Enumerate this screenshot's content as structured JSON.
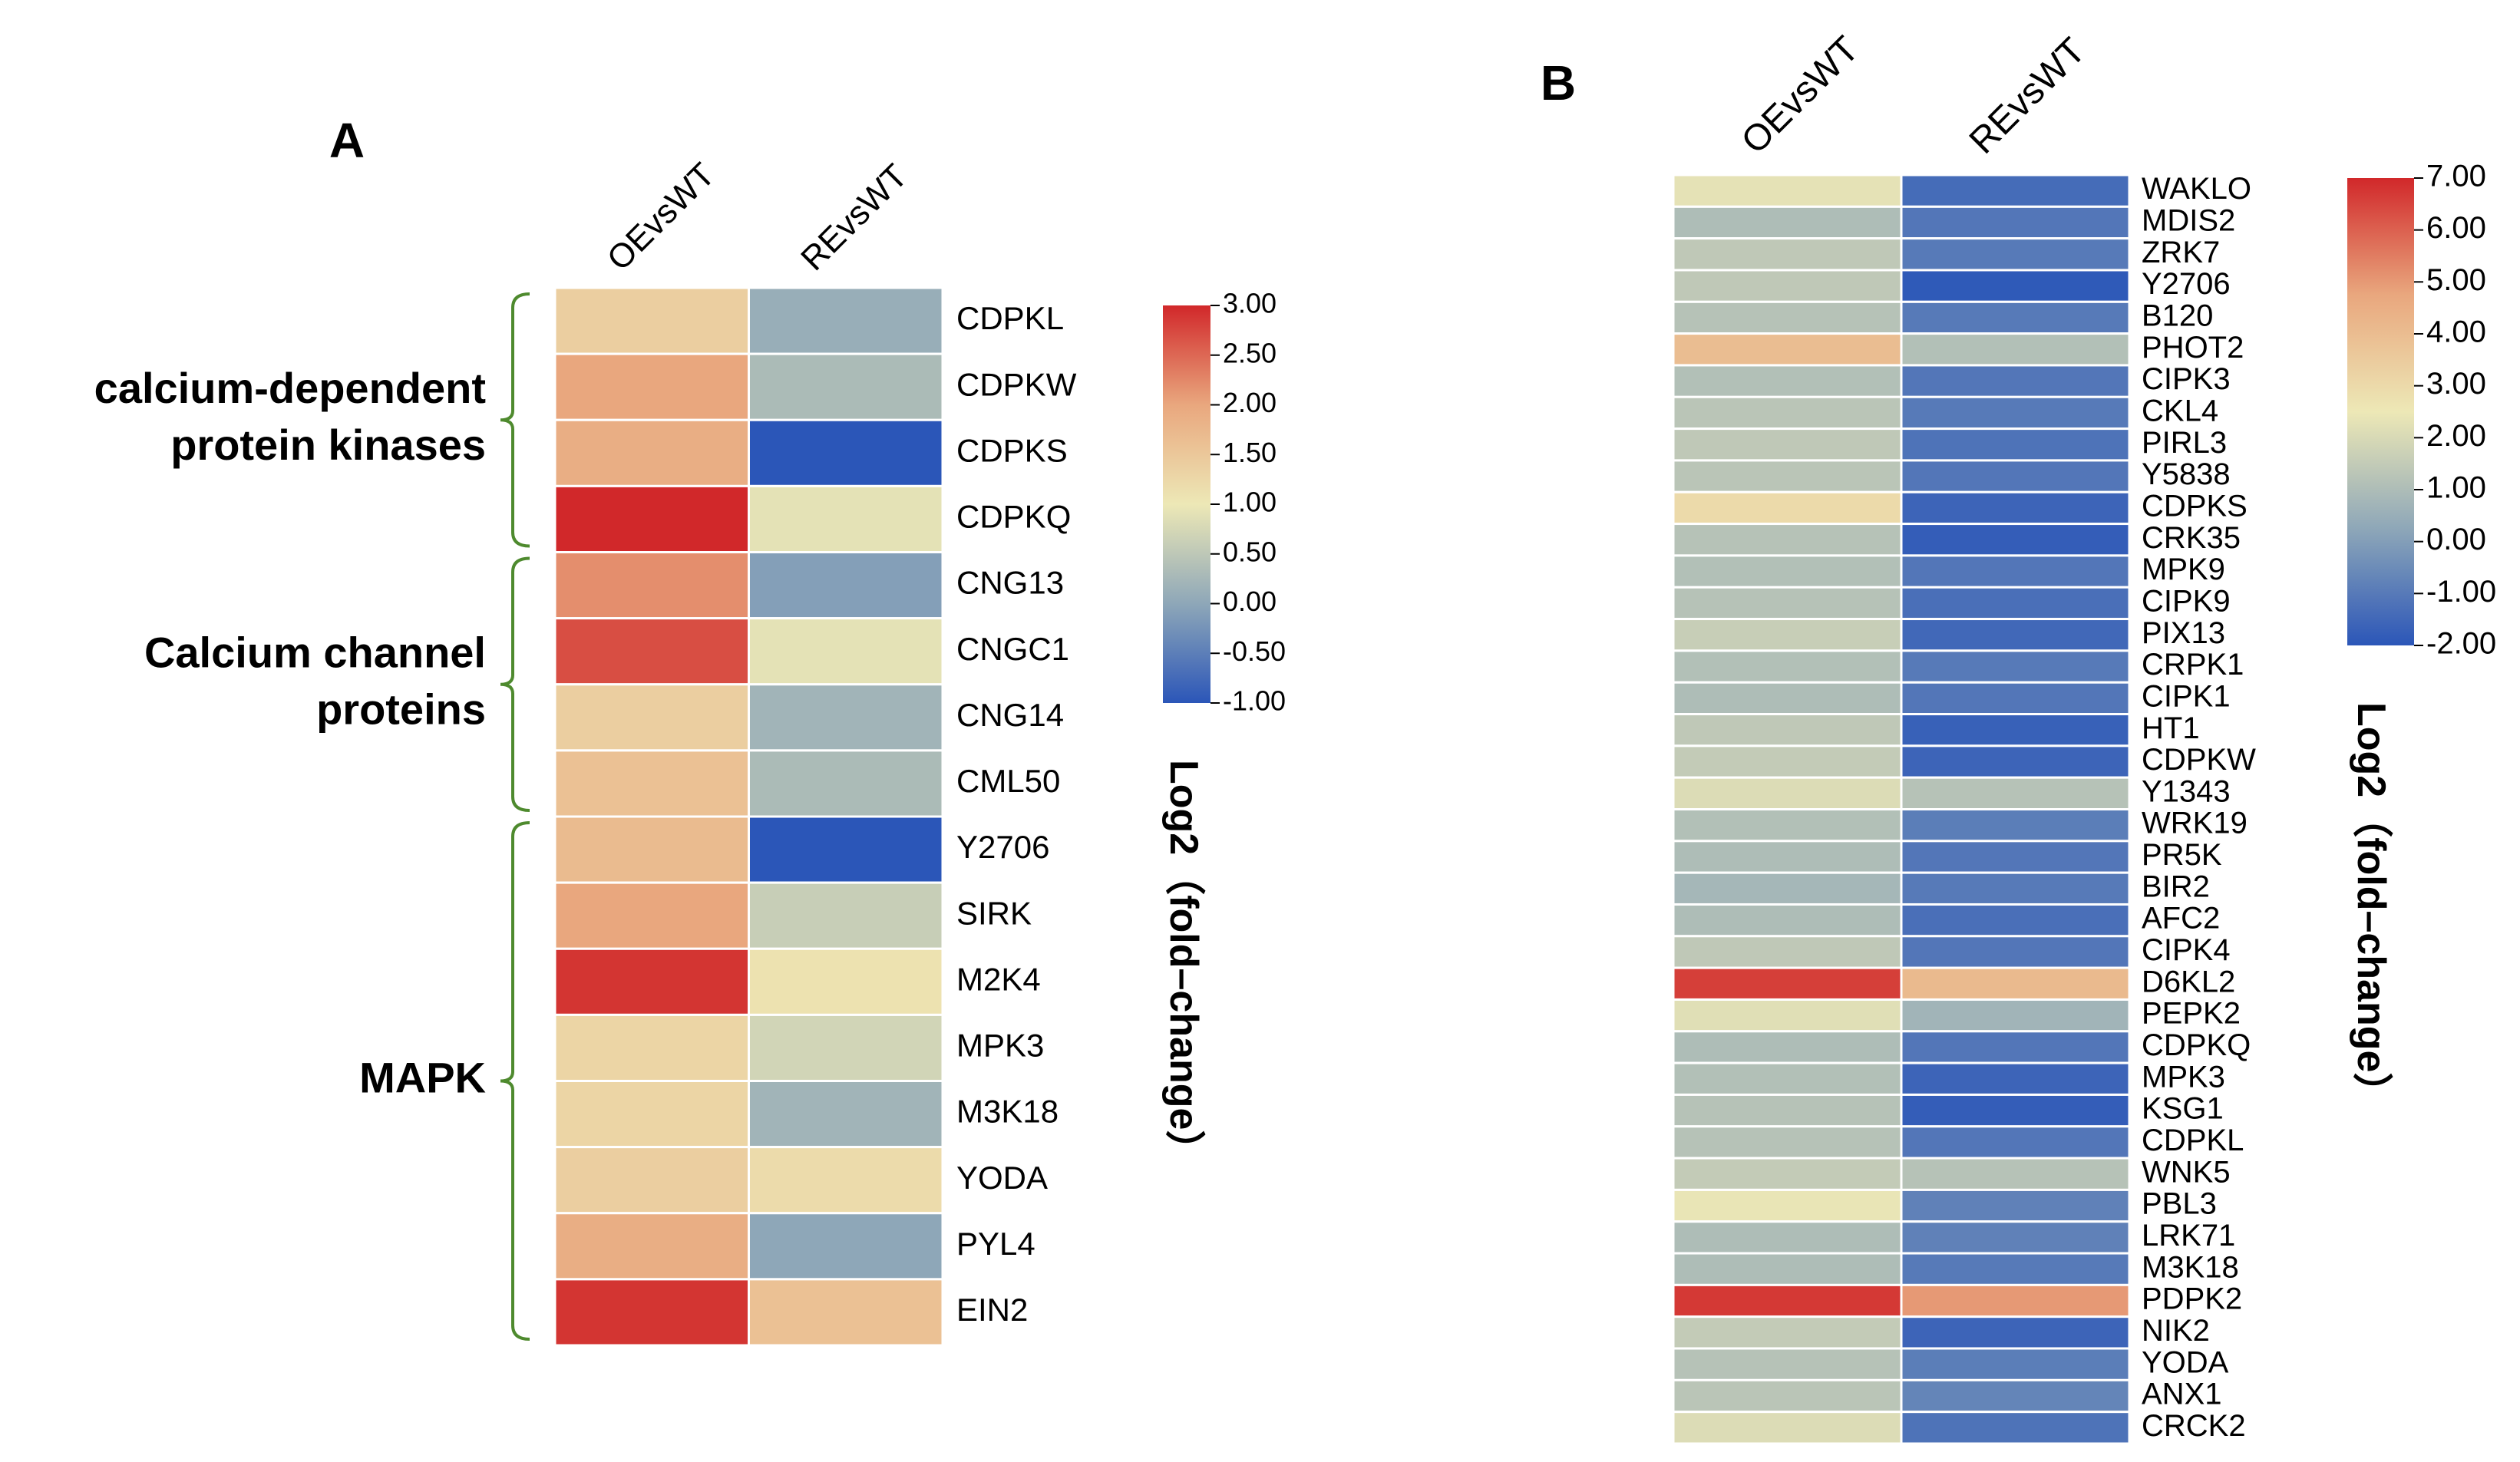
{
  "chart_data": [
    {
      "panel": "A",
      "type": "heatmap",
      "columns": [
        "OEvsWT",
        "REvsWT"
      ],
      "rows": [
        "CDPKL",
        "CDPKW",
        "CDPKS",
        "CDPKQ",
        "CNG13",
        "CNGC1",
        "CNG14",
        "CML50",
        "Y2706",
        "SIRK",
        "M2K4",
        "MPK3",
        "M3K18",
        "YODA",
        "PYL4",
        "EIN2"
      ],
      "values": [
        [
          1.4,
          0.1
        ],
        [
          2.0,
          0.3
        ],
        [
          1.9,
          -1.0
        ],
        [
          3.0,
          0.9
        ],
        [
          2.2,
          -0.1
        ],
        [
          2.7,
          0.9
        ],
        [
          1.4,
          0.2
        ],
        [
          1.6,
          0.3
        ],
        [
          1.7,
          -1.0
        ],
        [
          2.0,
          0.6
        ],
        [
          2.9,
          1.1
        ],
        [
          1.3,
          0.7
        ],
        [
          1.3,
          0.2
        ],
        [
          1.4,
          1.2
        ],
        [
          1.9,
          0.0
        ],
        [
          2.9,
          1.6
        ]
      ],
      "groups": [
        {
          "label": "calcium-dependent\nprotein kinases",
          "rows": [
            "CDPKL",
            "CDPKQ"
          ]
        },
        {
          "label": "Calcium channel\nproteins",
          "rows": [
            "CNG13",
            "CML50"
          ]
        },
        {
          "label": "MAPK",
          "rows": [
            "Y2706",
            "EIN2"
          ]
        }
      ],
      "legend": {
        "title": "Log2（fold–change）",
        "min": -1.0,
        "max": 3.0,
        "ticks": [
          "3.00",
          "2.50",
          "2.00",
          "1.50",
          "1.00",
          "0.50",
          "0.00",
          "-0.50",
          "-1.00"
        ]
      }
    },
    {
      "panel": "B",
      "type": "heatmap",
      "columns": [
        "OEvsWT",
        "REvsWT"
      ],
      "rows": [
        "WAKLO",
        "MDIS2",
        "ZRK7",
        "Y2706",
        "B120",
        "PHOT2",
        "CIPK3",
        "CKL4",
        "PIRL3",
        "Y5838",
        "CDPKS",
        "CRK35",
        "MPK9",
        "CIPK9",
        "PIX13",
        "CRPK1",
        "CIPK1",
        "HT1",
        "CDPKW",
        "Y1343",
        "WRK19",
        "PR5K",
        "BIR2",
        "AFC2",
        "CIPK4",
        "D6KL2",
        "PEPK2",
        "CDPKQ",
        "MPK3",
        "KSG1",
        "CDPKL",
        "WNK5",
        "PBL3",
        "LRK71",
        "M3K18",
        "PDPK2",
        "NIK2",
        "YODA",
        "ANX1",
        "CRCK2"
      ],
      "values": [
        [
          2.3,
          -1.4
        ],
        [
          1.0,
          -1.1
        ],
        [
          1.4,
          -1.0
        ],
        [
          1.4,
          -1.9
        ],
        [
          1.2,
          -1.0
        ],
        [
          4.0,
          1.1
        ],
        [
          1.1,
          -1.1
        ],
        [
          1.3,
          -1.0
        ],
        [
          1.4,
          -1.2
        ],
        [
          1.3,
          -1.1
        ],
        [
          3.0,
          -1.6
        ],
        [
          1.2,
          -1.8
        ],
        [
          1.1,
          -1.1
        ],
        [
          1.2,
          -1.3
        ],
        [
          1.6,
          -1.5
        ],
        [
          1.1,
          -1.0
        ],
        [
          1.0,
          -1.1
        ],
        [
          1.4,
          -1.7
        ],
        [
          1.5,
          -1.6
        ],
        [
          2.1,
          1.2
        ],
        [
          1.1,
          -0.9
        ],
        [
          1.0,
          -1.1
        ],
        [
          0.8,
          -1.0
        ],
        [
          1.0,
          -1.3
        ],
        [
          1.4,
          -1.1
        ],
        [
          6.6,
          4.1
        ],
        [
          2.2,
          0.7
        ],
        [
          1.0,
          -1.1
        ],
        [
          1.1,
          -1.6
        ],
        [
          1.2,
          -1.8
        ],
        [
          1.2,
          -1.1
        ],
        [
          1.5,
          1.2
        ],
        [
          2.4,
          -0.8
        ],
        [
          1.0,
          -0.8
        ],
        [
          1.0,
          -1.0
        ],
        [
          6.7,
          5.0
        ],
        [
          1.5,
          -1.6
        ],
        [
          1.2,
          -0.9
        ],
        [
          1.3,
          -0.7
        ],
        [
          2.1,
          -1.2
        ]
      ],
      "legend": {
        "title": "Log2（fold–change）",
        "min": -2.0,
        "max": 7.0,
        "ticks": [
          "7.00",
          "6.00",
          "5.00",
          "4.00",
          "3.00",
          "2.00",
          "1.00",
          "0.00",
          "-1.00",
          "-2.00"
        ]
      }
    }
  ],
  "colors": {
    "low": "#2B56B8",
    "mid_low": "#8EA7B8",
    "mid": "#EDE8B6",
    "mid_high": "#E9A77E",
    "high": "#D1282A",
    "bracket": "#4E8A2E",
    "text": "#000000"
  }
}
